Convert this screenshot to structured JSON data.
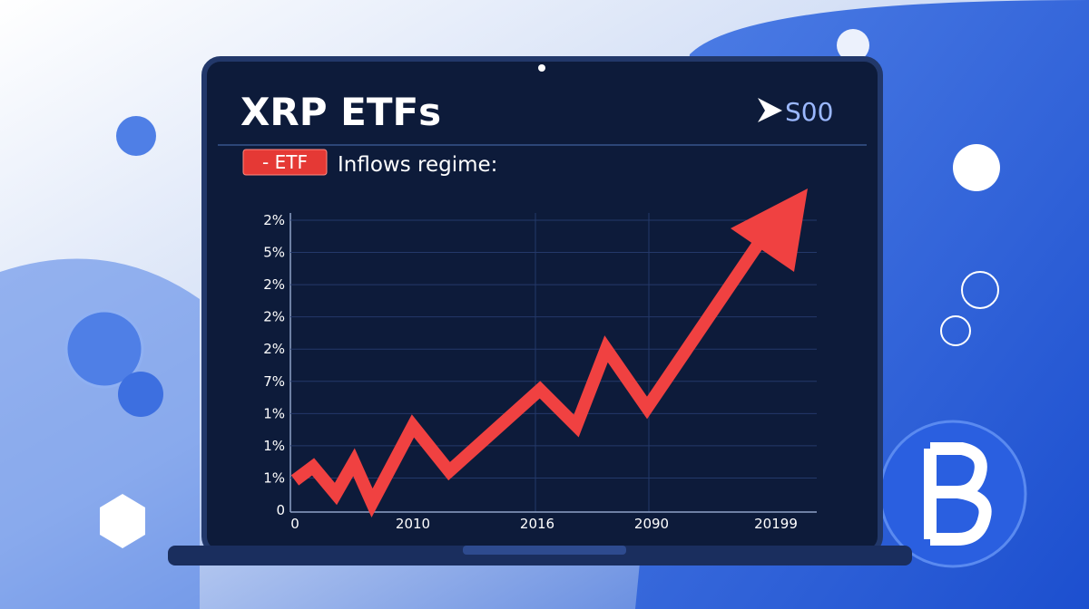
{
  "screen": {
    "title": "XRP ETFs",
    "corner_label": "S00",
    "badge": "- ETF",
    "subtitle": "Inflows regime:",
    "y_labels": [
      "2%",
      "5%",
      "2%",
      "2%",
      "2%",
      "7%",
      "1%",
      "1%",
      "1%",
      "0"
    ],
    "x_labels": [
      "0",
      "2010",
      "2016",
      "2090",
      "20199"
    ]
  }
}
